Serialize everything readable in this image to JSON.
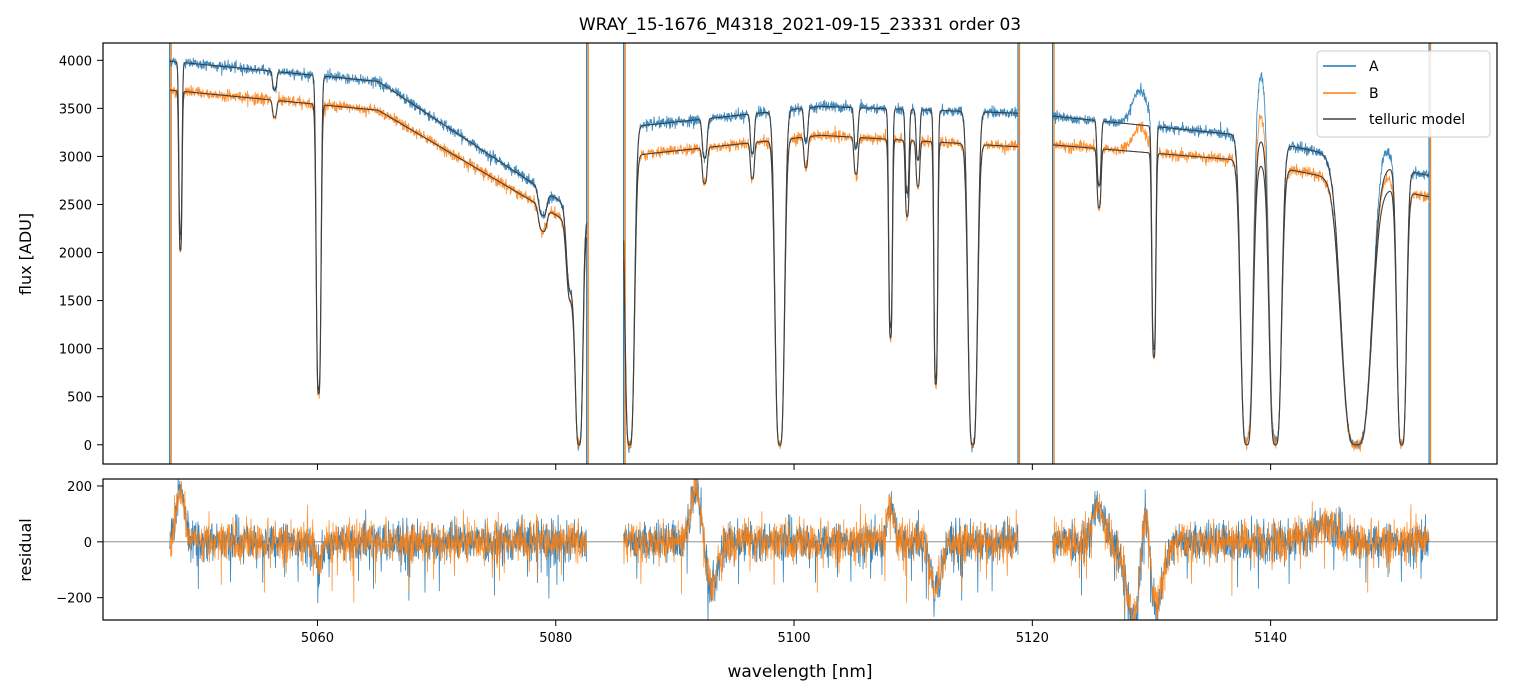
{
  "title": "WRAY_15-1676_M4318_2021-09-15_23331  order 03",
  "colors": {
    "A": "#1f77b4",
    "B": "#ff7f0e",
    "model": "#404040",
    "zero": "#808080"
  },
  "chart_data": [
    {
      "type": "line",
      "panel": "top",
      "xlabel": "",
      "ylabel": "flux [ADU]",
      "xlim": [
        5042,
        5159
      ],
      "ylim": [
        -200,
        4180
      ],
      "xticks": [
        5060,
        5080,
        5100,
        5120,
        5140
      ],
      "yticks": [
        0,
        500,
        1000,
        1500,
        2000,
        2500,
        3000,
        3500,
        4000
      ],
      "x_tick_labels_shown": false,
      "legend": {
        "placement": "top-right",
        "entries": [
          "A",
          "B",
          "telluric model"
        ]
      },
      "series": [
        {
          "name": "A",
          "role": "A"
        },
        {
          "name": "B",
          "role": "B"
        },
        {
          "name": "telluric model",
          "role": "model"
        }
      ],
      "segments": [
        {
          "x": [
            5047.6,
            5082.6
          ],
          "contA": [
            3990,
            3780,
            2350
          ],
          "contB": [
            3690,
            3480,
            2200
          ]
        },
        {
          "x": [
            5085.7,
            5118.8
          ],
          "contA": [
            3300,
            3520,
            3450
          ],
          "contB": [
            3000,
            3220,
            3100
          ]
        },
        {
          "x": [
            5121.7,
            5153.3
          ],
          "contA": [
            3420,
            3220,
            2800
          ],
          "contB": [
            3120,
            2960,
            2580
          ]
        }
      ],
      "absorption_lines": [
        {
          "x": 5048.5,
          "w": 0.12,
          "depth": 0.45
        },
        {
          "x": 5056.4,
          "w": 0.15,
          "depth": 0.05
        },
        {
          "x": 5060.1,
          "w": 0.18,
          "depth": 0.85
        },
        {
          "x": 5078.9,
          "w": 0.3,
          "depth": 0.1
        },
        {
          "x": 5081.3,
          "w": 0.35,
          "depth": 0.35
        },
        {
          "x": 5081.95,
          "w": 0.28,
          "depth": 1.0
        },
        {
          "x": 5086.2,
          "w": 0.35,
          "depth": 1.0
        },
        {
          "x": 5092.5,
          "w": 0.18,
          "depth": 0.12
        },
        {
          "x": 5096.5,
          "w": 0.15,
          "depth": 0.12
        },
        {
          "x": 5098.8,
          "w": 0.35,
          "depth": 1.0
        },
        {
          "x": 5101.0,
          "w": 0.15,
          "depth": 0.1
        },
        {
          "x": 5105.2,
          "w": 0.15,
          "depth": 0.12
        },
        {
          "x": 5108.1,
          "w": 0.14,
          "depth": 0.65
        },
        {
          "x": 5109.5,
          "w": 0.14,
          "depth": 0.25
        },
        {
          "x": 5110.4,
          "w": 0.14,
          "depth": 0.15
        },
        {
          "x": 5111.9,
          "w": 0.14,
          "depth": 0.8
        },
        {
          "x": 5115.0,
          "w": 0.35,
          "depth": 1.0
        },
        {
          "x": 5125.6,
          "w": 0.15,
          "depth": 0.2
        },
        {
          "x": 5130.2,
          "w": 0.15,
          "depth": 0.7
        },
        {
          "x": 5138.0,
          "w": 0.45,
          "depth": 1.0
        },
        {
          "x": 5140.4,
          "w": 0.45,
          "depth": 1.0
        },
        {
          "x": 5147.2,
          "w": 1.1,
          "depth": 1.0
        },
        {
          "x": 5151.0,
          "w": 0.35,
          "depth": 1.0
        }
      ],
      "emission_features": [
        {
          "x": 5129.0,
          "w": 0.6,
          "height": 900
        },
        {
          "x": 5139.2,
          "w": 0.5,
          "height": 1700
        },
        {
          "x": 5149.5,
          "w": 0.5,
          "height": 600
        }
      ]
    },
    {
      "type": "line",
      "panel": "bottom",
      "xlabel": "wavelength [nm]",
      "ylabel": "residual",
      "xlim": [
        5042,
        5159
      ],
      "ylim": [
        -280,
        225
      ],
      "xticks": [
        5060,
        5080,
        5100,
        5120,
        5140
      ],
      "yticks": [
        -200,
        0,
        200
      ],
      "zero_line": 0,
      "series": [
        {
          "name": "A",
          "role": "A"
        },
        {
          "name": "B",
          "role": "B"
        }
      ],
      "noise_level": 35,
      "features": [
        {
          "x": 5048.5,
          "w": 0.35,
          "amp": 180
        },
        {
          "x": 5060.1,
          "w": 0.3,
          "amp": -90
        },
        {
          "x": 5091.9,
          "w": 0.5,
          "amp": 230
        },
        {
          "x": 5092.9,
          "w": 0.6,
          "amp": -180
        },
        {
          "x": 5108.1,
          "w": 0.3,
          "amp": 130
        },
        {
          "x": 5111.9,
          "w": 0.45,
          "amp": -170
        },
        {
          "x": 5125.5,
          "w": 0.4,
          "amp": 140
        },
        {
          "x": 5128.6,
          "w": 0.7,
          "amp": -300
        },
        {
          "x": 5129.5,
          "w": 0.4,
          "amp": 330
        },
        {
          "x": 5130.3,
          "w": 0.6,
          "amp": -260
        },
        {
          "x": 5144.5,
          "w": 1.0,
          "amp": 60
        }
      ]
    }
  ]
}
